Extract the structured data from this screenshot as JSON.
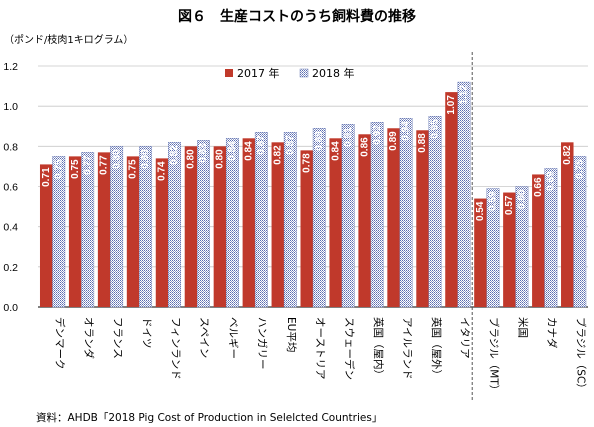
{
  "chart_data": {
    "type": "bar",
    "title": "図６　生産コストのうち飼料費の推移",
    "unit_label": "（ポンド/枝肉1キログラム）",
    "ylim": [
      0.0,
      1.2
    ],
    "yticks": [
      "0.0",
      "0.2",
      "0.4",
      "0.6",
      "0.8",
      "1.0",
      "1.2"
    ],
    "grid": true,
    "legend_position": "top-center",
    "categories": [
      "デンマーク",
      "オランダ",
      "フランス",
      "ドイツ",
      "フィンランド",
      "スペイン",
      "ベルギー",
      "ハンガリー",
      "EU平均",
      "オーストリア",
      "スウェーデン",
      "英国（屋内）",
      "アイルランド",
      "英国（屋外）",
      "イタリア",
      "ブラジル（MT）",
      "米国",
      "カナダ",
      "ブラジル（SC）"
    ],
    "separator_after_index": 14,
    "series": [
      {
        "name": "2017 年",
        "color": "#c0392b",
        "values": [
          0.71,
          0.75,
          0.77,
          0.75,
          0.74,
          0.8,
          0.8,
          0.84,
          0.82,
          0.78,
          0.84,
          0.86,
          0.89,
          0.88,
          1.07,
          0.54,
          0.57,
          0.66,
          0.82
        ],
        "labels": [
          "0.71",
          "0.75",
          "0.77",
          "0.75",
          "0.74",
          "0.80",
          "0.80",
          "0.84",
          "0.82",
          "0.78",
          "0.84",
          "0.86",
          "0.89",
          "0.88",
          "1.07",
          "0.54",
          "0.57",
          "0.66",
          "0.82"
        ]
      },
      {
        "name": "2018 年",
        "color": "#8e9ac8",
        "values": [
          0.75,
          0.77,
          0.8,
          0.8,
          0.82,
          0.83,
          0.84,
          0.87,
          0.87,
          0.89,
          0.91,
          0.92,
          0.94,
          0.95,
          1.12,
          0.59,
          0.6,
          0.69,
          0.75
        ],
        "labels": [
          "0.75",
          "0.77",
          "0.80",
          "0.80",
          "0.82",
          "0.83",
          "0.84",
          "0.87",
          "0.87",
          "0.89",
          "0.91",
          "0.92",
          "0.94",
          "0.95",
          "1.12",
          "0.59",
          "0.60",
          "0.69",
          "0.75"
        ]
      }
    ],
    "source": "資料：AHDB「2018 Pig Cost of Production in Selelcted Countries」"
  }
}
